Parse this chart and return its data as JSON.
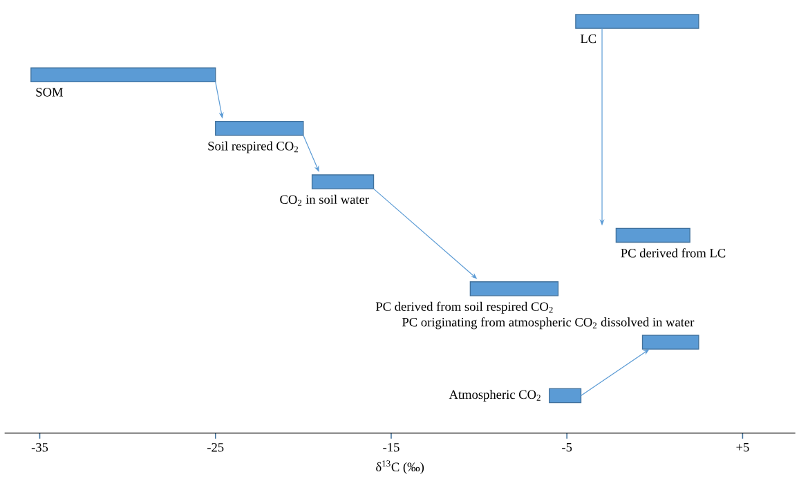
{
  "chart_data": {
    "type": "bar",
    "orientation": "horizontal",
    "xlabel": "δ$^{13}$C (‰)",
    "categories": [
      "LC",
      "SOM",
      "Soil respired CO$_{2}$",
      "CO$_{2}$ in soil water",
      "PC derived from LC",
      "PC derived from soil respired CO$_{2}$",
      "PC originating from atmospheric CO$_{2}$ dissolved in water",
      "Atmospheric CO$_{2}$"
    ],
    "base": [
      -4.5,
      -35.5,
      -25,
      -19.5,
      -2.2,
      -10.5,
      -0.7,
      -6
    ],
    "values": [
      7,
      10.5,
      5,
      3.5,
      4.2,
      5,
      3.2,
      1.8
    ],
    "color": "#5b9bd5",
    "xlim": [
      -37,
      8
    ],
    "xticks": [
      -35,
      -25,
      -15,
      -5,
      {
        "value": 5,
        "label": "+5"
      }
    ]
  }
}
